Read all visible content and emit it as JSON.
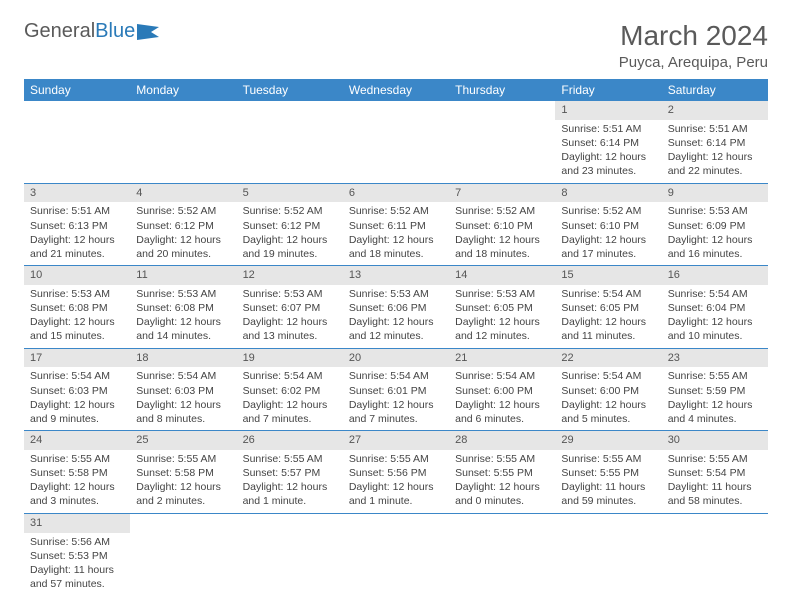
{
  "logo": {
    "word1": "General",
    "word2": "Blue"
  },
  "title": "March 2024",
  "location": "Puyca, Arequipa, Peru",
  "colors": {
    "header_bg": "#3b87c8",
    "header_text": "#ffffff",
    "daynum_bg": "#e6e6e6",
    "row_border": "#3b87c8",
    "page_bg": "#ffffff",
    "text": "#444444",
    "title_text": "#5a5a5a"
  },
  "weekdays": [
    "Sunday",
    "Monday",
    "Tuesday",
    "Wednesday",
    "Thursday",
    "Friday",
    "Saturday"
  ],
  "weeks": [
    [
      null,
      null,
      null,
      null,
      null,
      {
        "n": "1",
        "sr": "Sunrise: 5:51 AM",
        "ss": "Sunset: 6:14 PM",
        "dl1": "Daylight: 12 hours",
        "dl2": "and 23 minutes."
      },
      {
        "n": "2",
        "sr": "Sunrise: 5:51 AM",
        "ss": "Sunset: 6:14 PM",
        "dl1": "Daylight: 12 hours",
        "dl2": "and 22 minutes."
      }
    ],
    [
      {
        "n": "3",
        "sr": "Sunrise: 5:51 AM",
        "ss": "Sunset: 6:13 PM",
        "dl1": "Daylight: 12 hours",
        "dl2": "and 21 minutes."
      },
      {
        "n": "4",
        "sr": "Sunrise: 5:52 AM",
        "ss": "Sunset: 6:12 PM",
        "dl1": "Daylight: 12 hours",
        "dl2": "and 20 minutes."
      },
      {
        "n": "5",
        "sr": "Sunrise: 5:52 AM",
        "ss": "Sunset: 6:12 PM",
        "dl1": "Daylight: 12 hours",
        "dl2": "and 19 minutes."
      },
      {
        "n": "6",
        "sr": "Sunrise: 5:52 AM",
        "ss": "Sunset: 6:11 PM",
        "dl1": "Daylight: 12 hours",
        "dl2": "and 18 minutes."
      },
      {
        "n": "7",
        "sr": "Sunrise: 5:52 AM",
        "ss": "Sunset: 6:10 PM",
        "dl1": "Daylight: 12 hours",
        "dl2": "and 18 minutes."
      },
      {
        "n": "8",
        "sr": "Sunrise: 5:52 AM",
        "ss": "Sunset: 6:10 PM",
        "dl1": "Daylight: 12 hours",
        "dl2": "and 17 minutes."
      },
      {
        "n": "9",
        "sr": "Sunrise: 5:53 AM",
        "ss": "Sunset: 6:09 PM",
        "dl1": "Daylight: 12 hours",
        "dl2": "and 16 minutes."
      }
    ],
    [
      {
        "n": "10",
        "sr": "Sunrise: 5:53 AM",
        "ss": "Sunset: 6:08 PM",
        "dl1": "Daylight: 12 hours",
        "dl2": "and 15 minutes."
      },
      {
        "n": "11",
        "sr": "Sunrise: 5:53 AM",
        "ss": "Sunset: 6:08 PM",
        "dl1": "Daylight: 12 hours",
        "dl2": "and 14 minutes."
      },
      {
        "n": "12",
        "sr": "Sunrise: 5:53 AM",
        "ss": "Sunset: 6:07 PM",
        "dl1": "Daylight: 12 hours",
        "dl2": "and 13 minutes."
      },
      {
        "n": "13",
        "sr": "Sunrise: 5:53 AM",
        "ss": "Sunset: 6:06 PM",
        "dl1": "Daylight: 12 hours",
        "dl2": "and 12 minutes."
      },
      {
        "n": "14",
        "sr": "Sunrise: 5:53 AM",
        "ss": "Sunset: 6:05 PM",
        "dl1": "Daylight: 12 hours",
        "dl2": "and 12 minutes."
      },
      {
        "n": "15",
        "sr": "Sunrise: 5:54 AM",
        "ss": "Sunset: 6:05 PM",
        "dl1": "Daylight: 12 hours",
        "dl2": "and 11 minutes."
      },
      {
        "n": "16",
        "sr": "Sunrise: 5:54 AM",
        "ss": "Sunset: 6:04 PM",
        "dl1": "Daylight: 12 hours",
        "dl2": "and 10 minutes."
      }
    ],
    [
      {
        "n": "17",
        "sr": "Sunrise: 5:54 AM",
        "ss": "Sunset: 6:03 PM",
        "dl1": "Daylight: 12 hours",
        "dl2": "and 9 minutes."
      },
      {
        "n": "18",
        "sr": "Sunrise: 5:54 AM",
        "ss": "Sunset: 6:03 PM",
        "dl1": "Daylight: 12 hours",
        "dl2": "and 8 minutes."
      },
      {
        "n": "19",
        "sr": "Sunrise: 5:54 AM",
        "ss": "Sunset: 6:02 PM",
        "dl1": "Daylight: 12 hours",
        "dl2": "and 7 minutes."
      },
      {
        "n": "20",
        "sr": "Sunrise: 5:54 AM",
        "ss": "Sunset: 6:01 PM",
        "dl1": "Daylight: 12 hours",
        "dl2": "and 7 minutes."
      },
      {
        "n": "21",
        "sr": "Sunrise: 5:54 AM",
        "ss": "Sunset: 6:00 PM",
        "dl1": "Daylight: 12 hours",
        "dl2": "and 6 minutes."
      },
      {
        "n": "22",
        "sr": "Sunrise: 5:54 AM",
        "ss": "Sunset: 6:00 PM",
        "dl1": "Daylight: 12 hours",
        "dl2": "and 5 minutes."
      },
      {
        "n": "23",
        "sr": "Sunrise: 5:55 AM",
        "ss": "Sunset: 5:59 PM",
        "dl1": "Daylight: 12 hours",
        "dl2": "and 4 minutes."
      }
    ],
    [
      {
        "n": "24",
        "sr": "Sunrise: 5:55 AM",
        "ss": "Sunset: 5:58 PM",
        "dl1": "Daylight: 12 hours",
        "dl2": "and 3 minutes."
      },
      {
        "n": "25",
        "sr": "Sunrise: 5:55 AM",
        "ss": "Sunset: 5:58 PM",
        "dl1": "Daylight: 12 hours",
        "dl2": "and 2 minutes."
      },
      {
        "n": "26",
        "sr": "Sunrise: 5:55 AM",
        "ss": "Sunset: 5:57 PM",
        "dl1": "Daylight: 12 hours",
        "dl2": "and 1 minute."
      },
      {
        "n": "27",
        "sr": "Sunrise: 5:55 AM",
        "ss": "Sunset: 5:56 PM",
        "dl1": "Daylight: 12 hours",
        "dl2": "and 1 minute."
      },
      {
        "n": "28",
        "sr": "Sunrise: 5:55 AM",
        "ss": "Sunset: 5:55 PM",
        "dl1": "Daylight: 12 hours",
        "dl2": "and 0 minutes."
      },
      {
        "n": "29",
        "sr": "Sunrise: 5:55 AM",
        "ss": "Sunset: 5:55 PM",
        "dl1": "Daylight: 11 hours",
        "dl2": "and 59 minutes."
      },
      {
        "n": "30",
        "sr": "Sunrise: 5:55 AM",
        "ss": "Sunset: 5:54 PM",
        "dl1": "Daylight: 11 hours",
        "dl2": "and 58 minutes."
      }
    ],
    [
      {
        "n": "31",
        "sr": "Sunrise: 5:56 AM",
        "ss": "Sunset: 5:53 PM",
        "dl1": "Daylight: 11 hours",
        "dl2": "and 57 minutes."
      },
      null,
      null,
      null,
      null,
      null,
      null
    ]
  ]
}
